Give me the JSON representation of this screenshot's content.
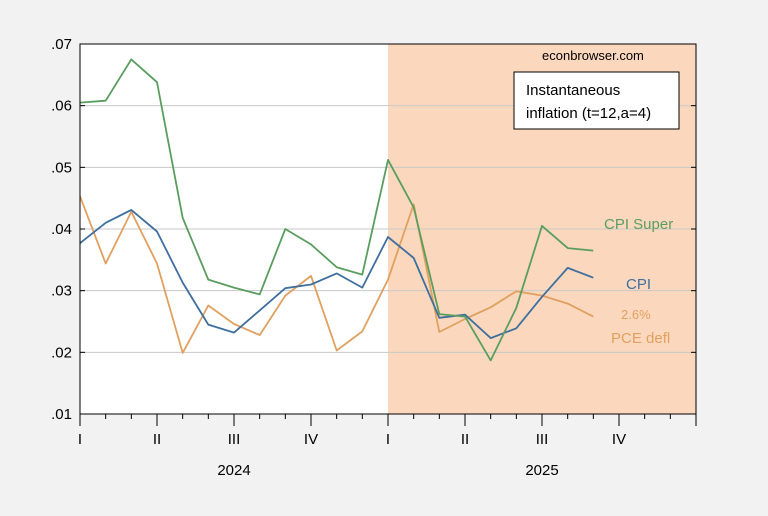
{
  "chart_data": {
    "type": "line",
    "title": "",
    "watermark": "econbrowser.com",
    "annotation_box": [
      "Instantaneous",
      "inflation (t=12,a=4)"
    ],
    "ylim": [
      0.01,
      0.07
    ],
    "yticks": [
      ".01",
      ".02",
      ".03",
      ".04",
      ".05",
      ".06",
      ".07"
    ],
    "ytick_values": [
      0.01,
      0.02,
      0.03,
      0.04,
      0.05,
      0.06,
      0.07
    ],
    "x_months": [
      "2024-01",
      "2024-02",
      "2024-03",
      "2024-04",
      "2024-05",
      "2024-06",
      "2024-07",
      "2024-08",
      "2024-09",
      "2024-10",
      "2024-11",
      "2024-12",
      "2025-01",
      "2025-02",
      "2025-03",
      "2025-04",
      "2025-05",
      "2025-06",
      "2025-07",
      "2025-08",
      "2025-09",
      "2025-10",
      "2025-11",
      "2025-12"
    ],
    "quarter_labels": [
      "I",
      "II",
      "III",
      "IV",
      "I",
      "II",
      "III",
      "IV"
    ],
    "year_labels": [
      "2024",
      "2025"
    ],
    "shaded_region": {
      "from": "2025-01",
      "to": "2025-12",
      "color": "#fbd8bd"
    },
    "grid": true,
    "series": [
      {
        "name": "CPI Super",
        "color": "#5a9e5f",
        "values": [
          0.0605,
          0.0608,
          0.0675,
          0.0638,
          0.0418,
          0.0318,
          0.0305,
          0.0294,
          0.04,
          0.0375,
          0.0338,
          0.0326,
          0.0512,
          0.0435,
          0.0262,
          0.0258,
          0.0187,
          0.0272,
          0.0405,
          0.0369,
          0.0365
        ]
      },
      {
        "name": "CPI",
        "color": "#3f6f9f",
        "values": [
          0.0377,
          0.041,
          0.0431,
          0.0396,
          0.0313,
          0.0245,
          0.0232,
          0.0268,
          0.0304,
          0.031,
          0.0328,
          0.0305,
          0.0387,
          0.0353,
          0.0256,
          0.0261,
          0.0223,
          0.0239,
          0.029,
          0.0337,
          0.0321
        ]
      },
      {
        "name": "PCE defl",
        "color": "#e0a060",
        "values": [
          0.0453,
          0.0344,
          0.0428,
          0.0344,
          0.0199,
          0.0276,
          0.0246,
          0.0228,
          0.0292,
          0.0324,
          0.0203,
          0.0234,
          0.0318,
          0.044,
          0.0233,
          0.0254,
          0.0273,
          0.0299,
          0.0292,
          0.0279,
          0.0258
        ]
      }
    ],
    "annotations": [
      {
        "text": "2.6%",
        "color": "#e0a060"
      }
    ]
  }
}
